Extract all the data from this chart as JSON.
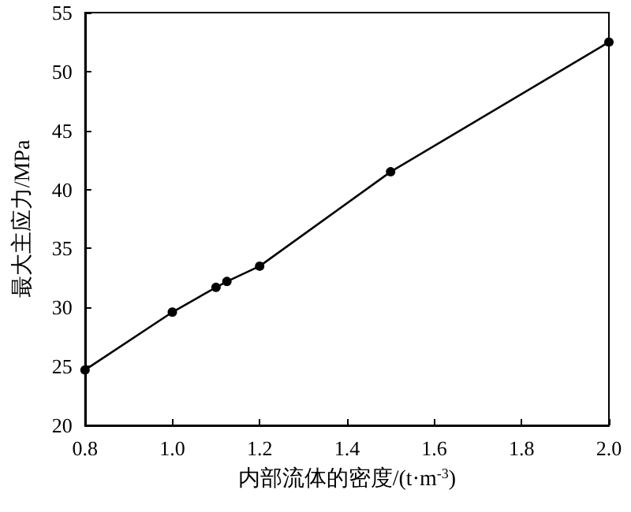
{
  "chart_data": {
    "type": "line",
    "xlabel": "内部流体的密度/(t·m$^{-3}$)",
    "ylabel": "最大主应力/MPa",
    "x": [
      0.8,
      1.0,
      1.1,
      1.125,
      1.2,
      1.5,
      2.0
    ],
    "series": [
      {
        "color": "#000000",
        "values": [
          24.7,
          29.6,
          31.7,
          32.2,
          33.5,
          41.5,
          52.5
        ]
      }
    ],
    "xlim": [
      0.8,
      2.0
    ],
    "xticks": [
      {
        "value": 0.8,
        "label": "0.8"
      },
      {
        "value": 1.0,
        "label": "1.0"
      },
      {
        "value": 1.2,
        "label": "1.2"
      },
      {
        "value": 1.4,
        "label": "1.4"
      },
      {
        "value": 1.6,
        "label": "1.6"
      },
      {
        "value": 1.8,
        "label": "1.8"
      },
      {
        "value": 2.0,
        "label": "2.0"
      }
    ],
    "ylim": [
      20,
      55
    ],
    "yticks": [
      20,
      25,
      30,
      35,
      40,
      45,
      50,
      55
    ],
    "marker": "circle",
    "line_style": "solid"
  }
}
